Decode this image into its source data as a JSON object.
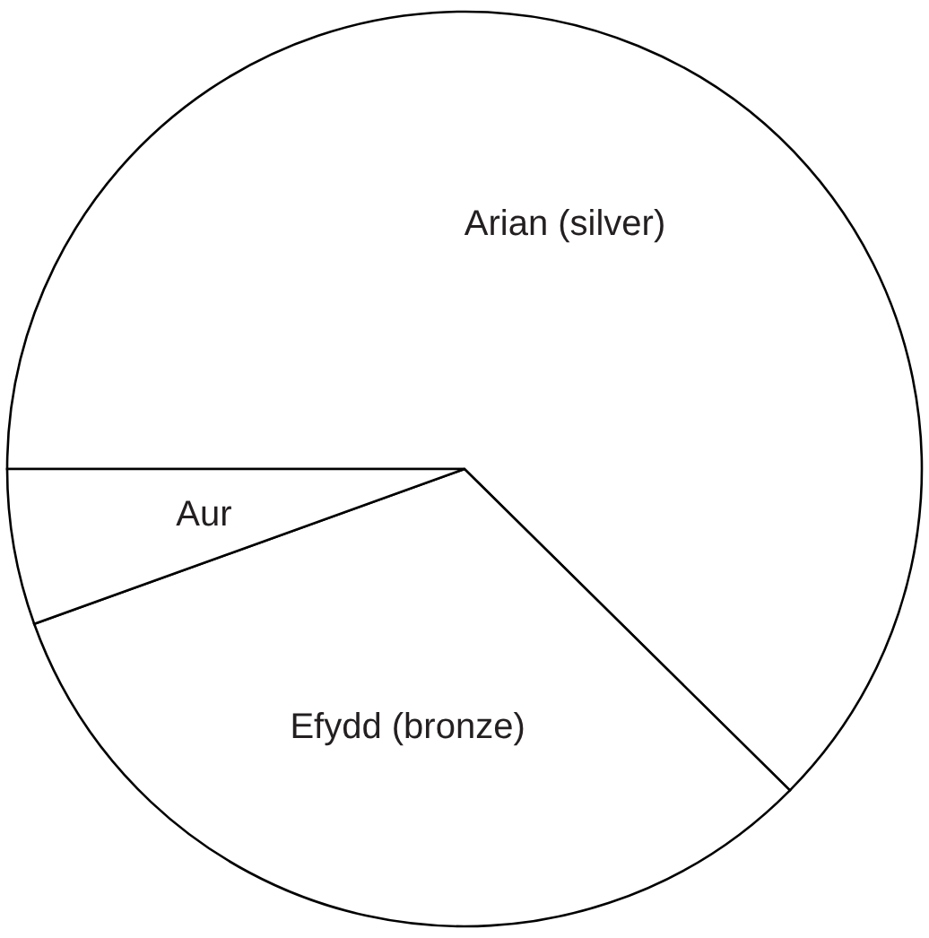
{
  "chart_data": {
    "type": "pie",
    "categories": [
      "Arian (silver)",
      "Efydd (bronze)",
      "Aur"
    ],
    "values": [
      62.4,
      32.1,
      5.5
    ],
    "colors": [
      "#ffffff",
      "#ffffff",
      "#ffffff"
    ]
  }
}
